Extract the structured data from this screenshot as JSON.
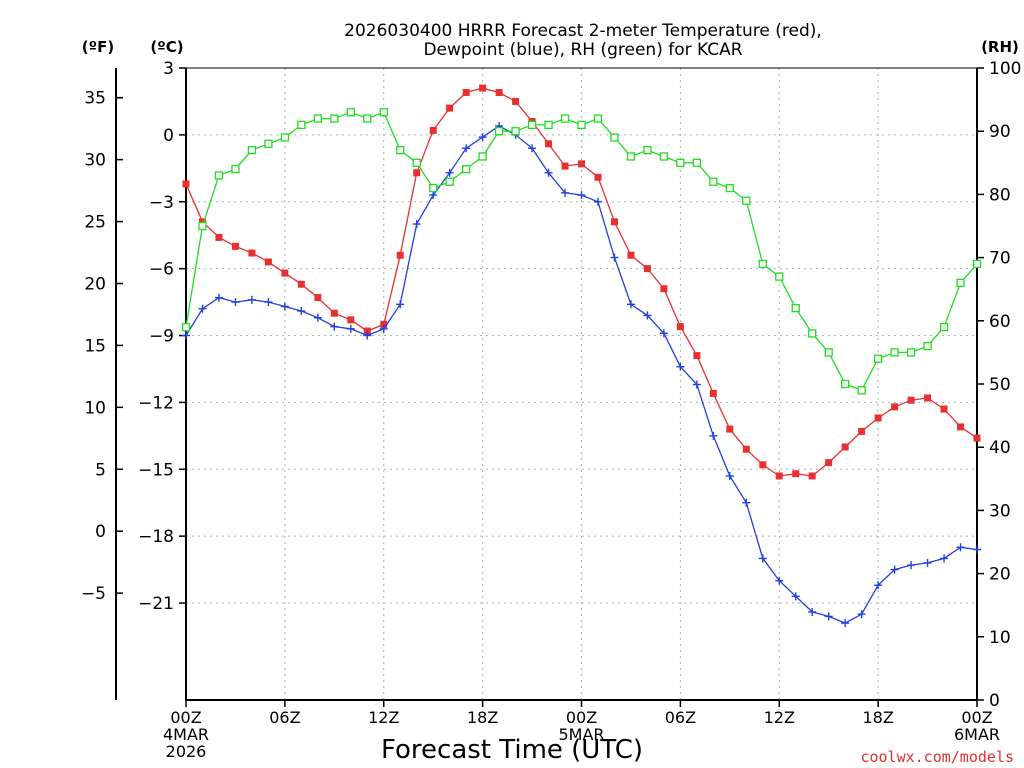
{
  "chart_data": {
    "type": "line",
    "title_line1": "2026030400 HRRR Forecast 2-meter Temperature (red),",
    "title_line2": "Dewpoint (blue), RH (green) for KCAR",
    "unit_f": "(ºF)",
    "unit_c": "(ºC)",
    "unit_rh": "(RH)",
    "xlabel": "Forecast Time (UTC)",
    "credit": "coolwx.com/models",
    "x_hours": [
      0,
      1,
      2,
      3,
      4,
      5,
      6,
      7,
      8,
      9,
      10,
      11,
      12,
      13,
      14,
      15,
      16,
      17,
      18,
      19,
      20,
      21,
      22,
      23,
      24,
      25,
      26,
      27,
      28,
      29,
      30,
      31,
      32,
      33,
      34,
      35,
      36,
      37,
      38,
      39,
      40,
      41,
      42,
      43,
      44,
      45,
      46,
      47,
      48
    ],
    "x_ticks": [
      {
        "hour": 0,
        "label": "00Z",
        "sub1": "4MAR",
        "sub2": "2026"
      },
      {
        "hour": 6,
        "label": "06Z"
      },
      {
        "hour": 12,
        "label": "12Z"
      },
      {
        "hour": 18,
        "label": "18Z"
      },
      {
        "hour": 24,
        "label": "00Z",
        "sub1": "5MAR"
      },
      {
        "hour": 30,
        "label": "06Z"
      },
      {
        "hour": 36,
        "label": "12Z"
      },
      {
        "hour": 42,
        "label": "18Z"
      },
      {
        "hour": 48,
        "label": "00Z",
        "sub1": "6MAR"
      }
    ],
    "celsius_axis": {
      "min": -25.35,
      "max": 3.0,
      "ticks": [
        3,
        0,
        -3,
        -6,
        -9,
        -12,
        -15,
        -18,
        -21
      ]
    },
    "fahrenheit_axis": {
      "ticks": [
        35,
        30,
        25,
        20,
        15,
        10,
        5,
        0,
        -5
      ]
    },
    "rh_axis": {
      "min": 0,
      "max": 100,
      "ticks": [
        100,
        90,
        80,
        70,
        60,
        50,
        40,
        30,
        20,
        10,
        0
      ]
    },
    "series": [
      {
        "name": "Temperature",
        "units": "C",
        "color": "#e83030",
        "marker": "filled-square",
        "values": [
          -2.2,
          -3.9,
          -4.6,
          -5.0,
          -5.3,
          -5.7,
          -6.2,
          -6.7,
          -7.3,
          -8.0,
          -8.3,
          -8.8,
          -8.5,
          -5.4,
          -1.7,
          0.2,
          1.2,
          1.9,
          2.1,
          1.9,
          1.5,
          0.6,
          -0.4,
          -1.4,
          -1.3,
          -1.9,
          -3.9,
          -5.4,
          -6.0,
          -6.9,
          -8.6,
          -9.9,
          -11.6,
          -13.2,
          -14.1,
          -14.8,
          -15.3,
          -15.2,
          -15.3,
          -14.7,
          -14.0,
          -13.3,
          -12.7,
          -12.2,
          -11.9,
          -11.8,
          -12.3,
          -13.1,
          -13.6
        ]
      },
      {
        "name": "Dewpoint",
        "units": "C",
        "color": "#2040e0",
        "marker": "plus",
        "values": [
          -9.0,
          -7.8,
          -7.3,
          -7.5,
          -7.4,
          -7.5,
          -7.7,
          -7.9,
          -8.2,
          -8.6,
          -8.7,
          -9.0,
          -8.7,
          -7.6,
          -4.0,
          -2.7,
          -1.7,
          -0.6,
          -0.1,
          0.4,
          0.0,
          -0.6,
          -1.7,
          -2.6,
          -2.7,
          -3.0,
          -5.5,
          -7.6,
          -8.1,
          -8.9,
          -10.4,
          -11.2,
          -13.5,
          -15.3,
          -16.5,
          -19.0,
          -20.0,
          -20.7,
          -21.4,
          -21.6,
          -21.9,
          -21.5,
          -20.2,
          -19.5,
          -19.3,
          -19.2,
          -19.0,
          -18.5,
          -18.6
        ]
      },
      {
        "name": "RH",
        "units": "%",
        "color": "#20dd20",
        "marker": "open-square",
        "values": [
          59,
          75,
          83,
          84,
          87,
          88,
          89,
          91,
          92,
          92,
          93,
          92,
          93,
          87,
          85,
          81,
          82,
          84,
          86,
          90,
          90,
          91,
          91,
          92,
          91,
          92,
          89,
          86,
          87,
          86,
          85,
          85,
          82,
          81,
          79,
          69,
          67,
          62,
          58,
          55,
          50,
          49,
          54,
          55,
          55,
          56,
          59,
          66,
          69
        ]
      }
    ]
  }
}
